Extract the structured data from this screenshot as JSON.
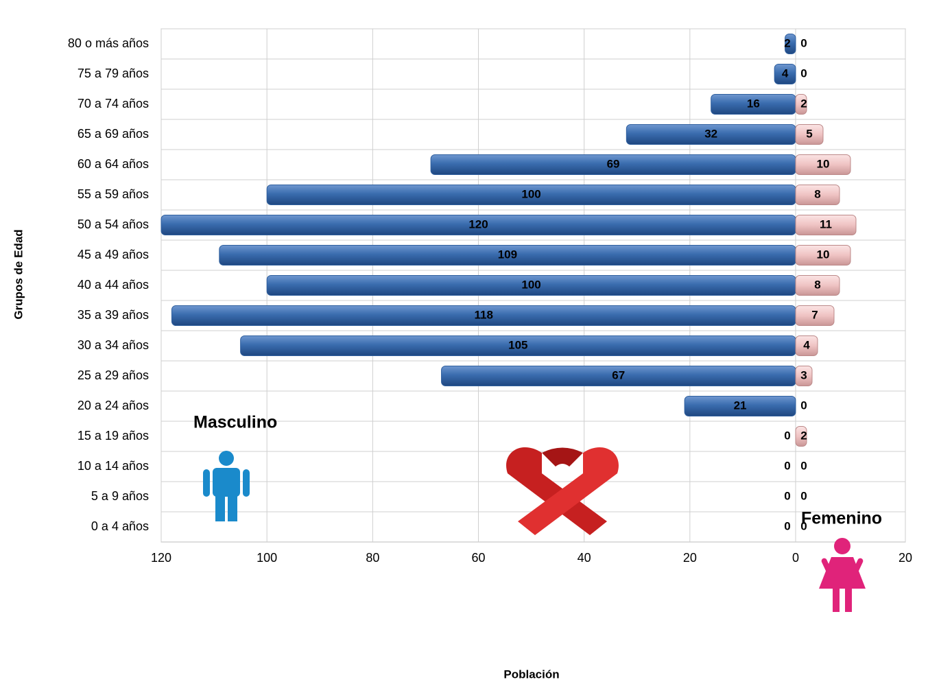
{
  "chart_data": {
    "type": "bar",
    "x_label": "Población",
    "y_label": "Grupos de Edad",
    "categories": [
      "80 o más años",
      "75 a 79 años",
      "70 a 74 años",
      "65 a 69 años",
      "60 a 64 años",
      "55 a 59 años",
      "50 a 54 años",
      "45 a 49 años",
      "40 a 44 años",
      "35 a 39 años",
      "30 a 34 años",
      "25 a 29 años",
      "20 a 24 años",
      "15 a 19 años",
      "10 a 14 años",
      "5 a 9 años",
      "0 a 4 años"
    ],
    "series": [
      {
        "name": "Masculino",
        "color": "#2f5f9e",
        "values": [
          2,
          4,
          16,
          32,
          69,
          100,
          120,
          109,
          100,
          118,
          105,
          67,
          21,
          0,
          0,
          0,
          0
        ]
      },
      {
        "name": "Femenino",
        "color": "#efc3c3",
        "axis": "x2",
        "values": [
          0,
          0,
          2,
          5,
          10,
          8,
          11,
          10,
          8,
          7,
          4,
          3,
          0,
          2,
          0,
          0,
          0
        ]
      }
    ],
    "xlim": [
      0,
      120
    ],
    "xticks": [
      120,
      100,
      80,
      60,
      40,
      20,
      0
    ],
    "x2lim": [
      0,
      20
    ],
    "x2ticks": [
      20
    ],
    "grid": true
  }
}
